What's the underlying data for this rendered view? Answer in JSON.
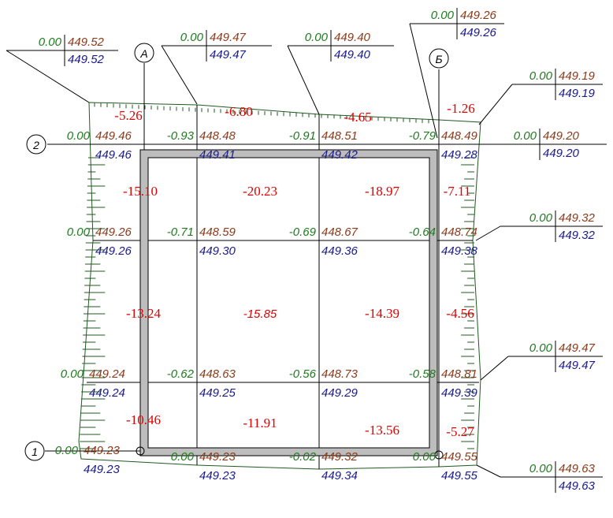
{
  "axes": [
    "А",
    "Б",
    "2",
    "1"
  ],
  "callouts": [
    {
      "work": "0.00",
      "design": "449.52",
      "existing": "449.52"
    },
    {
      "work": "0.00",
      "design": "449.47",
      "existing": "449.47"
    },
    {
      "work": "0.00",
      "design": "449.40",
      "existing": "449.40"
    },
    {
      "work": "0.00",
      "design": "449.26",
      "existing": "449.26"
    },
    {
      "work": "0.00",
      "design": "449.19",
      "existing": "449.19"
    },
    {
      "work": "0.00",
      "design": "449.20",
      "existing": "449.20"
    },
    {
      "work": "0.00",
      "design": "449.32",
      "existing": "449.32"
    },
    {
      "work": "0.00",
      "design": "449.47",
      "existing": "449.47"
    },
    {
      "work": "0.00",
      "design": "449.63",
      "existing": "449.63"
    }
  ],
  "nodes": [
    {
      "work": "0.00",
      "design": "449.46",
      "existing": "449.46"
    },
    {
      "work": "-0.93",
      "design": "448.48",
      "existing": "449.41"
    },
    {
      "work": "-0.91",
      "design": "448.51",
      "existing": "449.42"
    },
    {
      "work": "-0.79",
      "design": "448.49",
      "existing": "449.28"
    },
    {
      "work": "0.00",
      "design": "449.26",
      "existing": "449.26"
    },
    {
      "work": "-0.71",
      "design": "448.59",
      "existing": "449.30"
    },
    {
      "work": "-0.69",
      "design": "448.67",
      "existing": "449.36"
    },
    {
      "work": "-0.64",
      "design": "448.74",
      "existing": "449.38"
    },
    {
      "work": "0.00",
      "design": "449.24",
      "existing": "449.24"
    },
    {
      "work": "-0.62",
      "design": "448.63",
      "existing": "449.25"
    },
    {
      "work": "-0.56",
      "design": "448.73",
      "existing": "449.29"
    },
    {
      "work": "-0.58",
      "design": "448.81",
      "existing": "449.39"
    },
    {
      "work": "0.00",
      "design": "449.23",
      "existing": "449.23"
    },
    {
      "work": "0.00",
      "design": "449.23",
      "existing": "449.23"
    },
    {
      "work": "-0.02",
      "design": "449.32",
      "existing": "449.34"
    },
    {
      "work": "0.00",
      "design": "449.55",
      "existing": "449.55"
    }
  ],
  "volumes": [
    "-5.26",
    "-6.80",
    "-4.65",
    "-1.26",
    "-15.10",
    "-20.23",
    "-18.97",
    "-7.11",
    "-13.24",
    "-15.85",
    "-14.39",
    "-4.56",
    "-10.46",
    "-11.91",
    "-13.56",
    "-5.27"
  ]
}
